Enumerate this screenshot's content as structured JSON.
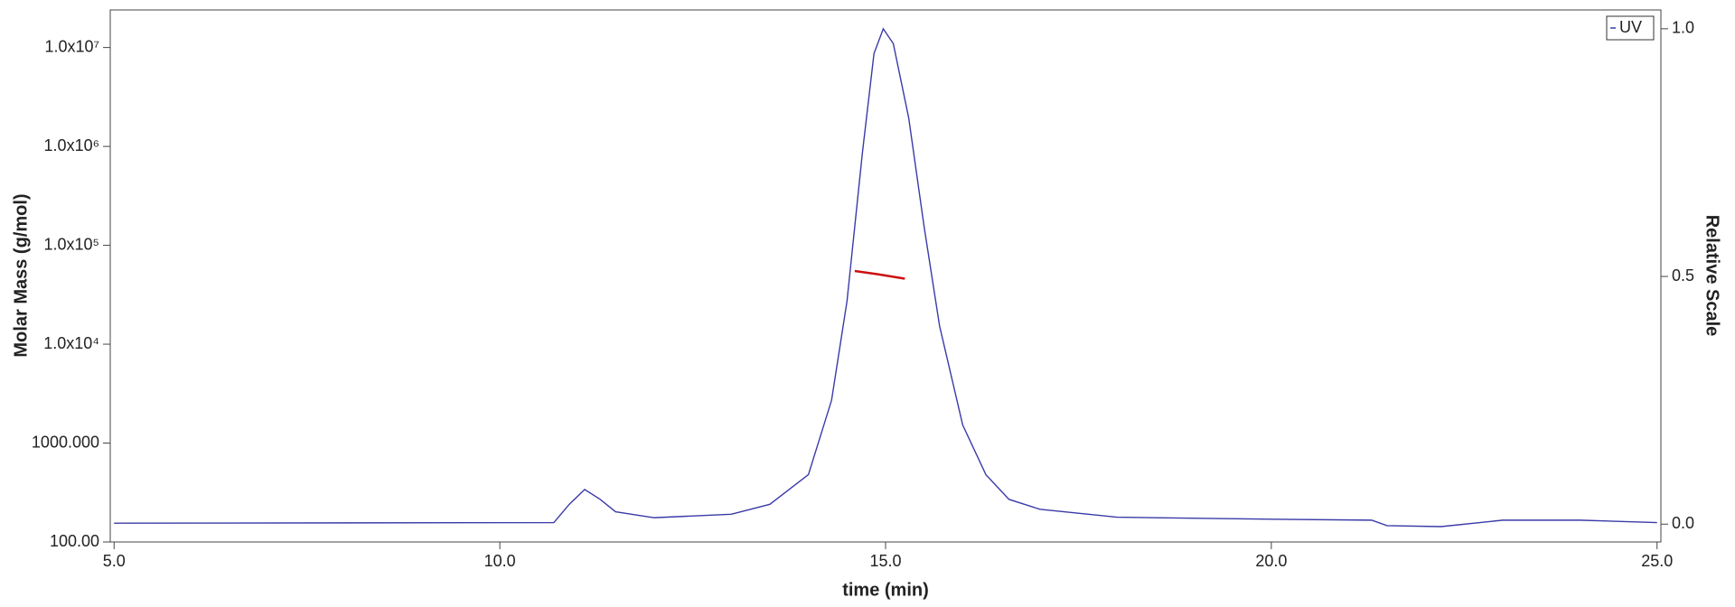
{
  "chart_data": {
    "type": "line",
    "x_label": "time (min)",
    "y_label": "Molar Mass (g/mol)",
    "y2_label": "Relative Scale",
    "xlim": [
      4.95,
      25.05
    ],
    "xticks": [
      {
        "value": 5,
        "label": "5.0"
      },
      {
        "value": 10,
        "label": "10.0"
      },
      {
        "value": 15,
        "label": "15.0"
      },
      {
        "value": 20,
        "label": "20.0"
      },
      {
        "value": 25,
        "label": "25.0"
      }
    ],
    "ylim": [
      100,
      24000000
    ],
    "yscale": "log",
    "yticks": [
      {
        "value": 100,
        "label": "100.00"
      },
      {
        "value": 1000,
        "label": "1000.000"
      },
      {
        "value": 10000,
        "label": "1.0x10⁴"
      },
      {
        "value": 100000,
        "label": "1.0x10⁵"
      },
      {
        "value": 1000000,
        "label": "1.0x10⁶"
      },
      {
        "value": 10000000,
        "label": "1.0x10⁷"
      }
    ],
    "y2lim": [
      -0.036,
      1.038
    ],
    "y2ticks": [
      {
        "value": 0,
        "label": "0.0"
      },
      {
        "value": 0.5,
        "label": "0.5"
      },
      {
        "value": 1,
        "label": "1.0"
      }
    ],
    "legend": "top-right",
    "series": [
      {
        "name": "UV",
        "color": "#3a3aa8",
        "axis": "y2",
        "x": [
          5.0,
          10.7,
          10.9,
          11.1,
          11.3,
          11.5,
          12.0,
          13.0,
          13.5,
          14.0,
          14.3,
          14.5,
          14.7,
          14.85,
          14.97,
          15.1,
          15.3,
          15.5,
          15.7,
          16.0,
          16.3,
          16.6,
          17.0,
          18.0,
          20.0,
          21.3,
          21.5,
          22.2,
          23.0,
          24.0,
          25.0
        ],
        "values": [
          0.002,
          0.003,
          0.04,
          0.07,
          0.05,
          0.025,
          0.013,
          0.02,
          0.04,
          0.1,
          0.25,
          0.45,
          0.75,
          0.95,
          1.0,
          0.97,
          0.82,
          0.6,
          0.4,
          0.2,
          0.1,
          0.05,
          0.03,
          0.014,
          0.01,
          0.008,
          -0.003,
          -0.005,
          0.008,
          0.008,
          0.003
        ]
      },
      {
        "color": "#cc1010",
        "axis": "y",
        "x": [
          14.6,
          14.9,
          15.25
        ],
        "values": [
          55000,
          51000,
          46000
        ]
      }
    ]
  }
}
